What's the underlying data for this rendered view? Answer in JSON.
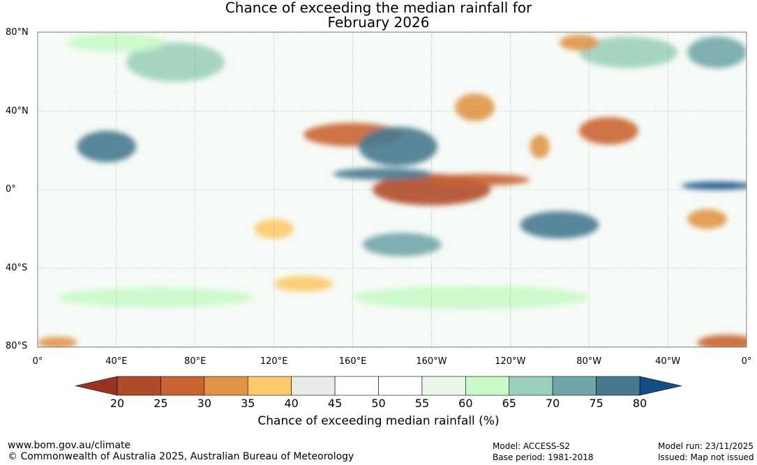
{
  "title": {
    "line1": "Chance of exceeding the median rainfall for",
    "line2": "February 2026"
  },
  "map": {
    "lat_labels": [
      {
        "lat": 80,
        "text": "80°N"
      },
      {
        "lat": 40,
        "text": "40°N"
      },
      {
        "lat": 0,
        "text": "0°"
      },
      {
        "lat": -40,
        "text": "40°S"
      },
      {
        "lat": -80,
        "text": "80°S"
      }
    ],
    "lon_labels": [
      {
        "lon": 0,
        "text": "0°"
      },
      {
        "lon": 40,
        "text": "40°E"
      },
      {
        "lon": 80,
        "text": "80°E"
      },
      {
        "lon": 120,
        "text": "120°E"
      },
      {
        "lon": 160,
        "text": "160°E"
      },
      {
        "lon": 200,
        "text": "160°W"
      },
      {
        "lon": 240,
        "text": "120°W"
      },
      {
        "lon": 280,
        "text": "80°W"
      },
      {
        "lon": 320,
        "text": "40°W"
      },
      {
        "lon": 360,
        "text": "0°"
      }
    ],
    "anomaly_regions": [
      {
        "lon": 200,
        "lat": 0,
        "rlon": 30,
        "rlat": 8,
        "value": 22
      },
      {
        "lon": 225,
        "lat": 5,
        "rlon": 25,
        "rlat": 3,
        "value": 27
      },
      {
        "lon": 160,
        "lat": 28,
        "rlon": 25,
        "rlat": 6,
        "value": 28
      },
      {
        "lon": 222,
        "lat": 42,
        "rlon": 10,
        "rlat": 7,
        "value": 30
      },
      {
        "lon": 290,
        "lat": 30,
        "rlon": 15,
        "rlat": 7,
        "value": 28
      },
      {
        "lon": 255,
        "lat": 22,
        "rlon": 5,
        "rlat": 6,
        "value": 32
      },
      {
        "lon": 183,
        "lat": 22,
        "rlon": 20,
        "rlat": 10,
        "value": 78
      },
      {
        "lon": 175,
        "lat": 8,
        "rlon": 25,
        "rlat": 3,
        "value": 77
      },
      {
        "lon": 35,
        "lat": 22,
        "rlon": 15,
        "rlat": 8,
        "value": 78
      },
      {
        "lon": 345,
        "lat": 2,
        "rlon": 18,
        "rlat": 2,
        "value": 80
      },
      {
        "lon": 265,
        "lat": -18,
        "rlon": 20,
        "rlat": 7,
        "value": 75
      },
      {
        "lon": 185,
        "lat": -28,
        "rlon": 20,
        "rlat": 6,
        "value": 70
      },
      {
        "lon": 340,
        "lat": -15,
        "rlon": 10,
        "rlat": 5,
        "value": 32
      },
      {
        "lon": 120,
        "lat": -20,
        "rlon": 10,
        "rlat": 5,
        "value": 35
      },
      {
        "lon": 70,
        "lat": 65,
        "rlon": 25,
        "rlat": 10,
        "value": 68
      },
      {
        "lon": 40,
        "lat": 75,
        "rlon": 25,
        "rlat": 5,
        "value": 62
      },
      {
        "lon": 300,
        "lat": 70,
        "rlon": 25,
        "rlat": 8,
        "value": 66
      },
      {
        "lon": 345,
        "lat": 70,
        "rlon": 15,
        "rlat": 8,
        "value": 74
      },
      {
        "lon": 275,
        "lat": 75,
        "rlon": 10,
        "rlat": 4,
        "value": 33
      },
      {
        "lon": 350,
        "lat": -78,
        "rlon": 15,
        "rlat": 4,
        "value": 28
      },
      {
        "lon": 10,
        "lat": -78,
        "rlon": 10,
        "rlat": 3,
        "value": 30
      },
      {
        "lon": 60,
        "lat": -55,
        "rlon": 50,
        "rlat": 5,
        "value": 62
      },
      {
        "lon": 220,
        "lat": -55,
        "rlon": 60,
        "rlat": 6,
        "value": 60
      },
      {
        "lon": 135,
        "lat": -48,
        "rlon": 15,
        "rlat": 4,
        "value": 36
      }
    ]
  },
  "colorbar": {
    "ticks": [
      "20",
      "25",
      "30",
      "35",
      "40",
      "45",
      "50",
      "55",
      "60",
      "65",
      "70",
      "75",
      "80"
    ],
    "low_color": "#9b3322",
    "high_color": "#134d85",
    "colors": [
      "#b04a28",
      "#c96432",
      "#e09347",
      "#fdca6a",
      "#ebeae6",
      "#ffffff",
      "#ffffff",
      "#eaf6ea",
      "#c8f9c8",
      "#9bd0ba",
      "#71a6a9",
      "#46798f"
    ],
    "label": "Chance of exceeding median rainfall (%)"
  },
  "footer": {
    "url": "www.bom.gov.au/climate",
    "copyright": "© Commonwealth of Australia 2025, Australian Bureau of Meteorology",
    "model": "Model: ACCESS-S2",
    "base_period": "Base period: 1981-2018",
    "model_run": "Model run: 23/11/2025",
    "issued": "Issued: Map not issued"
  }
}
